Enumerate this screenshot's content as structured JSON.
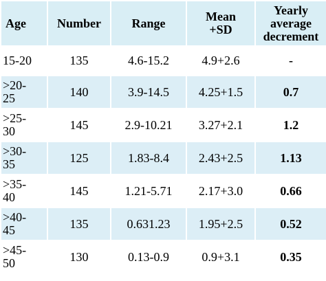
{
  "table": {
    "header": [
      "Age",
      "Number",
      "Range",
      "Mean\n+SD",
      "Yearly\naverage\ndecrement"
    ],
    "rows": [
      [
        "15-20",
        "135",
        "4.6-15.2",
        "4.9+2.6",
        "-"
      ],
      [
        ">20-\n25",
        "140",
        "3.9-14.5",
        "4.25+1.5",
        "0.7"
      ],
      [
        ">25-\n30",
        "145",
        "2.9-10.21",
        "3.27+2.1",
        "1.2"
      ],
      [
        ">30-\n35",
        "125",
        "1.83-8.4",
        "2.43+2.5",
        "1.13"
      ],
      [
        ">35-\n40",
        "145",
        "1.21-5.71",
        "2.17+3.0",
        "0.66"
      ],
      [
        ">40-\n45",
        "135",
        "0.631.23",
        "1.95+2.5",
        "0.52"
      ],
      [
        ">45-\n50",
        "130",
        "0.13-0.9",
        "0.9+3.1",
        "0.35"
      ]
    ]
  }
}
